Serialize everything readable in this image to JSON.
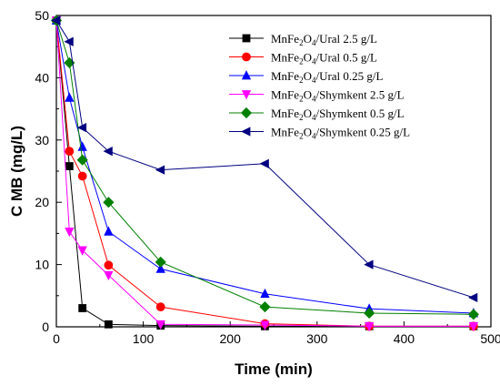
{
  "chart_data": {
    "type": "line",
    "xlabel": "Time (min)",
    "ylabel": "C MB (mg/L)",
    "xlim": [
      0,
      500
    ],
    "ylim": [
      0,
      50
    ],
    "x_ticks": [
      0,
      100,
      200,
      300,
      400,
      500
    ],
    "y_ticks": [
      0,
      10,
      20,
      30,
      40,
      50
    ],
    "grid": false,
    "legend_position": "top-right",
    "series": [
      {
        "name_base": "MnFe",
        "name_sub1": "2",
        "name_mid": "O",
        "name_sub2": "4",
        "name_rest": "/Ural 2.5 g/L",
        "color": "#000000",
        "marker": "square",
        "x": [
          0,
          15,
          30,
          60,
          120,
          240,
          360,
          480
        ],
        "y": [
          49.2,
          25.8,
          3.0,
          0.4,
          0.2,
          0.1,
          0.1,
          0.1
        ]
      },
      {
        "name_base": "MnFe",
        "name_sub1": "2",
        "name_mid": "O",
        "name_sub2": "4",
        "name_rest": "/Ural 0.5 g/L",
        "color": "#ff0000",
        "marker": "circle",
        "x": [
          0,
          15,
          30,
          60,
          120,
          240,
          360,
          480
        ],
        "y": [
          49.2,
          28.2,
          24.2,
          9.9,
          3.2,
          0.5,
          0.1,
          0.1
        ]
      },
      {
        "name_base": "MnFe",
        "name_sub1": "2",
        "name_mid": "O",
        "name_sub2": "4",
        "name_rest": "/Ural 0.25 g/L",
        "color": "#0000ff",
        "marker": "triangle-up",
        "x": [
          0,
          15,
          30,
          60,
          120,
          240,
          360,
          480
        ],
        "y": [
          49.2,
          36.8,
          28.9,
          15.3,
          9.3,
          5.3,
          2.9,
          2.2
        ]
      },
      {
        "name_base": "MnFe",
        "name_sub1": "2",
        "name_mid": "O",
        "name_sub2": "4",
        "name_rest": "/Shymkent 2.5 g/L",
        "color": "#ff00ff",
        "marker": "triangle-down",
        "x": [
          0,
          15,
          30,
          60,
          120,
          240,
          360,
          480
        ],
        "y": [
          49.2,
          15.3,
          12.3,
          8.3,
          0.4,
          0.3,
          0.1,
          0.1
        ]
      },
      {
        "name_base": "MnFe",
        "name_sub1": "2",
        "name_mid": "O",
        "name_sub2": "4",
        "name_rest": "/Shymkent 0.5 g/L",
        "color": "#008000",
        "marker": "diamond",
        "x": [
          0,
          15,
          30,
          60,
          120,
          240,
          360,
          480
        ],
        "y": [
          49.2,
          42.4,
          26.8,
          20.0,
          10.4,
          3.2,
          2.2,
          2.0
        ]
      },
      {
        "name_base": "MnFe",
        "name_sub1": "2",
        "name_mid": "O",
        "name_sub2": "4",
        "name_rest": "/Shymkent 0.25 g/L",
        "color": "#000080",
        "marker": "triangle-left",
        "x": [
          0,
          15,
          30,
          60,
          120,
          240,
          360,
          480
        ],
        "y": [
          49.2,
          45.8,
          32.0,
          28.2,
          25.2,
          26.2,
          10.0,
          4.7
        ]
      }
    ]
  }
}
